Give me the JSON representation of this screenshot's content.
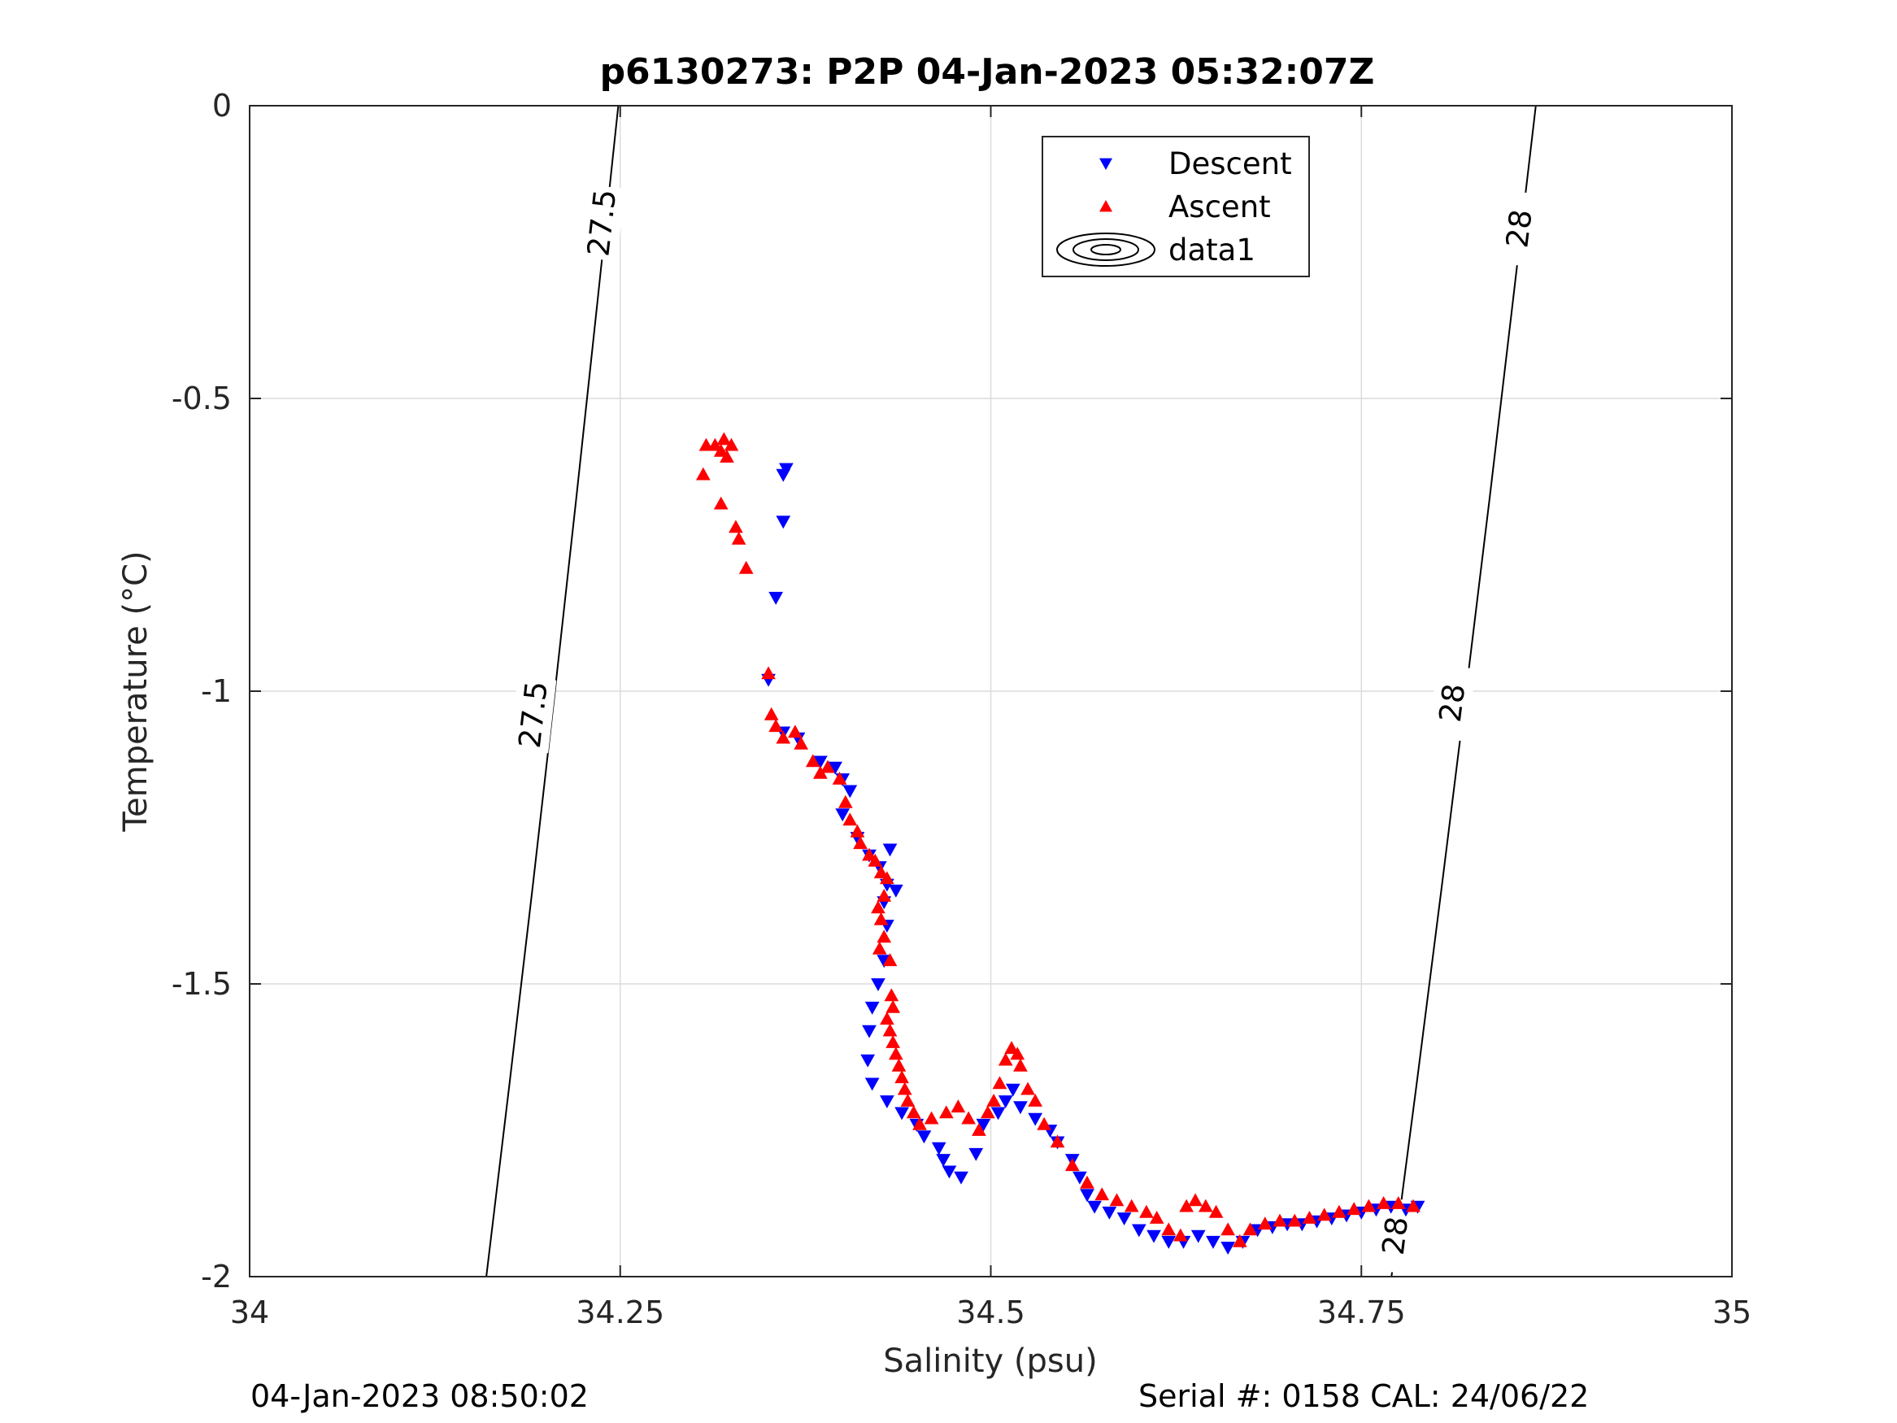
{
  "chart_data": {
    "type": "scatter",
    "title": "p6130273: P2P 04-Jan-2023 05:32:07Z",
    "xlabel": "Salinity (psu)",
    "ylabel": "Temperature (°C)",
    "xlim": [
      34,
      35
    ],
    "ylim": [
      -2,
      0
    ],
    "x_ticks": [
      34,
      34.25,
      34.5,
      34.75,
      35
    ],
    "x_tick_labels": [
      "34",
      "34.25",
      "34.5",
      "34.75",
      "35"
    ],
    "y_ticks": [
      0,
      -0.5,
      -1,
      -1.5,
      -2
    ],
    "y_tick_labels": [
      "0",
      "-0.5",
      "-1",
      "-1.5",
      "-2"
    ],
    "grid": true,
    "legend_position": "top-right",
    "legend": [
      "Descent",
      "Ascent",
      "data1"
    ],
    "series": [
      {
        "name": "Descent",
        "marker": "triangle-down",
        "color": "#0000ff",
        "points": [
          [
            34.362,
            -0.62
          ],
          [
            34.36,
            -0.63
          ],
          [
            34.36,
            -0.71
          ],
          [
            34.355,
            -0.84
          ],
          [
            34.35,
            -0.98
          ],
          [
            34.36,
            -1.07
          ],
          [
            34.37,
            -1.08
          ],
          [
            34.385,
            -1.12
          ],
          [
            34.395,
            -1.13
          ],
          [
            34.4,
            -1.15
          ],
          [
            34.405,
            -1.17
          ],
          [
            34.4,
            -1.21
          ],
          [
            34.41,
            -1.25
          ],
          [
            34.418,
            -1.28
          ],
          [
            34.425,
            -1.3
          ],
          [
            34.432,
            -1.27
          ],
          [
            34.43,
            -1.33
          ],
          [
            34.436,
            -1.34
          ],
          [
            34.428,
            -1.36
          ],
          [
            34.43,
            -1.4
          ],
          [
            34.428,
            -1.46
          ],
          [
            34.424,
            -1.5
          ],
          [
            34.42,
            -1.54
          ],
          [
            34.418,
            -1.58
          ],
          [
            34.417,
            -1.63
          ],
          [
            34.42,
            -1.67
          ],
          [
            34.43,
            -1.7
          ],
          [
            34.44,
            -1.72
          ],
          [
            34.45,
            -1.74
          ],
          [
            34.455,
            -1.76
          ],
          [
            34.465,
            -1.78
          ],
          [
            34.468,
            -1.8
          ],
          [
            34.472,
            -1.82
          ],
          [
            34.48,
            -1.83
          ],
          [
            34.49,
            -1.79
          ],
          [
            34.495,
            -1.74
          ],
          [
            34.505,
            -1.72
          ],
          [
            34.51,
            -1.7
          ],
          [
            34.515,
            -1.68
          ],
          [
            34.52,
            -1.71
          ],
          [
            34.53,
            -1.73
          ],
          [
            34.54,
            -1.75
          ],
          [
            34.545,
            -1.77
          ],
          [
            34.555,
            -1.8
          ],
          [
            34.56,
            -1.83
          ],
          [
            34.565,
            -1.86
          ],
          [
            34.57,
            -1.88
          ],
          [
            34.58,
            -1.89
          ],
          [
            34.59,
            -1.9
          ],
          [
            34.6,
            -1.92
          ],
          [
            34.61,
            -1.93
          ],
          [
            34.62,
            -1.94
          ],
          [
            34.63,
            -1.94
          ],
          [
            34.64,
            -1.93
          ],
          [
            34.65,
            -1.94
          ],
          [
            34.66,
            -1.95
          ],
          [
            34.67,
            -1.94
          ],
          [
            34.68,
            -1.92
          ],
          [
            34.69,
            -1.915
          ],
          [
            34.7,
            -1.91
          ],
          [
            34.71,
            -1.91
          ],
          [
            34.72,
            -1.905
          ],
          [
            34.73,
            -1.9
          ],
          [
            34.74,
            -1.895
          ],
          [
            34.75,
            -1.89
          ],
          [
            34.76,
            -1.885
          ],
          [
            34.77,
            -1.88
          ],
          [
            34.78,
            -1.885
          ],
          [
            34.788,
            -1.88
          ]
        ]
      },
      {
        "name": "Ascent",
        "marker": "triangle-up",
        "color": "#ff0000",
        "points": [
          [
            34.308,
            -0.58
          ],
          [
            34.314,
            -0.58
          ],
          [
            34.318,
            -0.59
          ],
          [
            34.32,
            -0.57
          ],
          [
            34.322,
            -0.6
          ],
          [
            34.325,
            -0.58
          ],
          [
            34.306,
            -0.63
          ],
          [
            34.318,
            -0.68
          ],
          [
            34.328,
            -0.72
          ],
          [
            34.33,
            -0.74
          ],
          [
            34.335,
            -0.79
          ],
          [
            34.35,
            -0.97
          ],
          [
            34.352,
            -1.04
          ],
          [
            34.355,
            -1.06
          ],
          [
            34.36,
            -1.08
          ],
          [
            34.368,
            -1.07
          ],
          [
            34.372,
            -1.09
          ],
          [
            34.38,
            -1.12
          ],
          [
            34.385,
            -1.14
          ],
          [
            34.39,
            -1.13
          ],
          [
            34.398,
            -1.15
          ],
          [
            34.402,
            -1.19
          ],
          [
            34.405,
            -1.22
          ],
          [
            34.41,
            -1.24
          ],
          [
            34.412,
            -1.26
          ],
          [
            34.418,
            -1.28
          ],
          [
            34.422,
            -1.29
          ],
          [
            34.426,
            -1.31
          ],
          [
            34.43,
            -1.32
          ],
          [
            34.428,
            -1.35
          ],
          [
            34.424,
            -1.37
          ],
          [
            34.426,
            -1.39
          ],
          [
            34.428,
            -1.42
          ],
          [
            34.425,
            -1.44
          ],
          [
            34.432,
            -1.46
          ],
          [
            34.433,
            -1.52
          ],
          [
            34.434,
            -1.54
          ],
          [
            34.43,
            -1.56
          ],
          [
            34.432,
            -1.58
          ],
          [
            34.434,
            -1.6
          ],
          [
            34.436,
            -1.62
          ],
          [
            34.438,
            -1.64
          ],
          [
            34.44,
            -1.66
          ],
          [
            34.442,
            -1.68
          ],
          [
            34.444,
            -1.7
          ],
          [
            34.448,
            -1.72
          ],
          [
            34.452,
            -1.74
          ],
          [
            34.46,
            -1.73
          ],
          [
            34.47,
            -1.72
          ],
          [
            34.478,
            -1.71
          ],
          [
            34.485,
            -1.73
          ],
          [
            34.492,
            -1.75
          ],
          [
            34.498,
            -1.72
          ],
          [
            34.502,
            -1.7
          ],
          [
            34.506,
            -1.67
          ],
          [
            34.51,
            -1.63
          ],
          [
            34.514,
            -1.61
          ],
          [
            34.518,
            -1.62
          ],
          [
            34.52,
            -1.64
          ],
          [
            34.525,
            -1.68
          ],
          [
            34.53,
            -1.7
          ],
          [
            34.536,
            -1.74
          ],
          [
            34.545,
            -1.77
          ],
          [
            34.555,
            -1.81
          ],
          [
            34.565,
            -1.84
          ],
          [
            34.575,
            -1.86
          ],
          [
            34.585,
            -1.87
          ],
          [
            34.595,
            -1.88
          ],
          [
            34.605,
            -1.89
          ],
          [
            34.612,
            -1.9
          ],
          [
            34.62,
            -1.92
          ],
          [
            34.628,
            -1.93
          ],
          [
            34.632,
            -1.88
          ],
          [
            34.638,
            -1.87
          ],
          [
            34.645,
            -1.88
          ],
          [
            34.652,
            -1.89
          ],
          [
            34.66,
            -1.92
          ],
          [
            34.668,
            -1.94
          ],
          [
            34.675,
            -1.92
          ],
          [
            34.685,
            -1.91
          ],
          [
            34.695,
            -1.905
          ],
          [
            34.705,
            -1.905
          ],
          [
            34.715,
            -1.9
          ],
          [
            34.725,
            -1.895
          ],
          [
            34.735,
            -1.89
          ],
          [
            34.745,
            -1.885
          ],
          [
            34.755,
            -1.88
          ],
          [
            34.765,
            -1.875
          ],
          [
            34.775,
            -1.875
          ],
          [
            34.785,
            -1.88
          ]
        ]
      }
    ],
    "contours": [
      {
        "name": "data1",
        "level_label": "27.5",
        "x": [
          34.2487,
          34.2347,
          34.2205,
          34.206,
          34.191,
          34.1755,
          34.1597
        ],
        "y": [
          0,
          -0.333,
          -0.667,
          -1.0,
          -1.333,
          -1.667,
          -2.0
        ],
        "labels": [
          [
            34.2374,
            -0.2
          ],
          [
            34.1911,
            -1.04
          ]
        ]
      },
      {
        "name": "data1",
        "level_label": "28",
        "x": [
          34.8677,
          34.8523,
          34.8367,
          34.8207,
          34.8043,
          34.7875,
          34.7703
        ],
        "y": [
          0,
          -0.333,
          -0.667,
          -1.0,
          -1.333,
          -1.667,
          -2.0
        ],
        "labels": [
          [
            34.8563,
            -0.21
          ],
          [
            34.8111,
            -1.02
          ],
          [
            34.7726,
            -1.93
          ]
        ]
      }
    ]
  },
  "footer": {
    "date_label": "04-Jan-2023 08:50:02",
    "serial_label": "Serial #: 0158  CAL: 24/06/22"
  }
}
